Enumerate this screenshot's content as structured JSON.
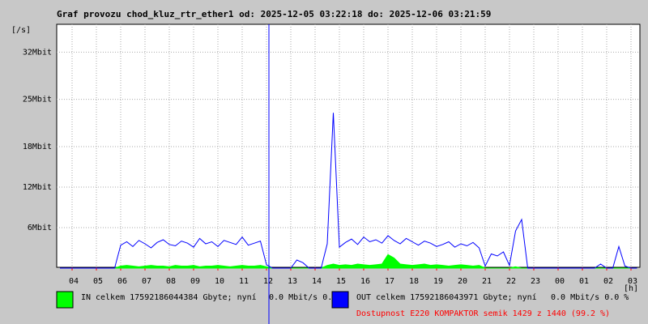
{
  "chart_data": {
    "type": "line",
    "title": "Graf provozu chod_kluz_rtr_ether1 od: 2025-12-05 03:22:18 do: 2025-12-06 03:21:59",
    "y_label": "[/s]",
    "x_label": "[h]",
    "ylim": [
      0,
      36
    ],
    "yticks": [
      {
        "value": 6,
        "label": "6Mbit"
      },
      {
        "value": 12,
        "label": "12Mbit"
      },
      {
        "value": 18,
        "label": "18Mbit"
      },
      {
        "value": 25,
        "label": "25Mbit"
      },
      {
        "value": 32,
        "label": "32Mbit"
      }
    ],
    "grid": true,
    "categories": [
      null,
      null,
      "04",
      null,
      null,
      null,
      "05",
      null,
      null,
      null,
      "06",
      null,
      null,
      null,
      "07",
      null,
      null,
      null,
      "08",
      null,
      null,
      null,
      "09",
      null,
      null,
      null,
      "10",
      null,
      null,
      null,
      "11",
      null,
      null,
      null,
      "12",
      null,
      null,
      null,
      "13",
      null,
      null,
      null,
      "14",
      null,
      null,
      null,
      "15",
      null,
      null,
      null,
      "16",
      null,
      null,
      null,
      "17",
      null,
      null,
      null,
      "18",
      null,
      null,
      null,
      "19",
      null,
      null,
      null,
      "20",
      null,
      null,
      null,
      "21",
      null,
      null,
      null,
      "22",
      null,
      null,
      null,
      "23",
      null,
      null,
      null,
      "00",
      null,
      null,
      null,
      "01",
      null,
      null,
      null,
      "02",
      null,
      null,
      null,
      "03",
      null
    ],
    "series": [
      {
        "name": "IN",
        "color": "#00ff00",
        "total": "celkem 17592186044384 Gbyte; nyní",
        "now": "0.0 Mbit/s 0.0 %",
        "values": [
          0,
          0,
          0,
          0,
          0,
          0,
          0,
          0,
          0,
          0,
          0.3,
          0.4,
          0.3,
          0.2,
          0.3,
          0.4,
          0.3,
          0.3,
          0.2,
          0.4,
          0.3,
          0.3,
          0.4,
          0.2,
          0.3,
          0.3,
          0.4,
          0.3,
          0.2,
          0.3,
          0.4,
          0.3,
          0.3,
          0.4,
          0.2,
          0,
          0,
          0,
          0,
          0,
          0,
          0,
          0,
          0,
          0.4,
          0.6,
          0.4,
          0.5,
          0.4,
          0.6,
          0.5,
          0.4,
          0.5,
          0.6,
          2.0,
          1.5,
          0.6,
          0.5,
          0.4,
          0.5,
          0.6,
          0.4,
          0.5,
          0.4,
          0.3,
          0.4,
          0.5,
          0.4,
          0.3,
          0.4,
          0,
          0,
          0,
          0,
          0,
          0.2,
          0,
          0,
          0,
          0,
          0,
          0,
          0,
          0,
          0,
          0,
          0,
          0,
          0,
          0,
          0,
          0,
          0,
          0,
          0,
          0
        ]
      },
      {
        "name": "OUT",
        "color": "#0000ff",
        "total": "celkem 17592186043971 Gbyte; nyní",
        "now": "0.0 Mbit/s 0.0 %",
        "values": [
          0,
          0,
          0,
          0,
          0,
          0,
          0,
          0,
          0,
          0,
          3.4,
          3.9,
          3.2,
          4.1,
          3.6,
          3.0,
          3.8,
          4.2,
          3.5,
          3.3,
          4.0,
          3.7,
          3.1,
          4.4,
          3.6,
          3.9,
          3.2,
          4.1,
          3.8,
          3.5,
          4.6,
          3.4,
          3.7,
          4.0,
          0.5,
          0,
          0,
          0,
          0,
          1.2,
          0.8,
          0,
          0,
          0,
          3.6,
          23,
          3.1,
          3.8,
          4.3,
          3.5,
          4.6,
          3.9,
          4.2,
          3.7,
          4.8,
          4.1,
          3.6,
          4.4,
          3.9,
          3.4,
          4.0,
          3.7,
          3.2,
          3.5,
          3.9,
          3.1,
          3.6,
          3.3,
          3.8,
          3.0,
          0.3,
          2.1,
          1.8,
          2.4,
          0.4,
          5.5,
          7.2,
          0,
          0,
          0,
          0,
          0,
          0,
          0,
          0,
          0,
          0,
          0,
          0,
          0.6,
          0,
          0,
          3.2,
          0.3,
          0,
          0
        ]
      }
    ],
    "availability": "Dostupnost E220 KOMPAKTOR semik 1429 z 1440 (99.2 %)"
  }
}
